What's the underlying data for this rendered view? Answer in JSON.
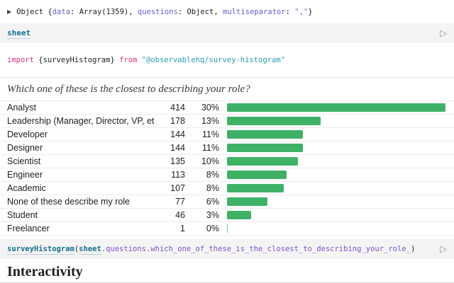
{
  "inspector": {
    "toggle": "▶",
    "object_prefix": "Object {",
    "entries": [
      {
        "key": "data",
        "sep": ": ",
        "value": "Array(1359)",
        "kind": "plain"
      },
      {
        "key": "questions",
        "sep": ": ",
        "value": "Object",
        "kind": "plain"
      },
      {
        "key": "multiseparator",
        "sep": ": ",
        "value": "\",\"",
        "kind": "string"
      }
    ],
    "delimiter": ", ",
    "object_suffix": "}"
  },
  "sheet_cell": {
    "label": "sheet"
  },
  "import_cell": {
    "kw_import": "import",
    "binding": "{surveyHistogram}",
    "kw_from": "from",
    "module_string": "\"@observablehq/survey-histogram\""
  },
  "chart_data": {
    "type": "bar",
    "orientation": "horizontal",
    "title": "Which one of these is the closest to describing your role?",
    "categories": [
      "Analyst",
      "Leadership (Manager, Director, VP, etc)",
      "Developer",
      "Designer",
      "Scientist",
      "Engineer",
      "Academic",
      "None of these describe my role",
      "Student",
      "Freelancer"
    ],
    "counts": [
      414,
      178,
      144,
      144,
      135,
      113,
      107,
      77,
      46,
      1
    ],
    "percent_labels": [
      "30%",
      "13%",
      "11%",
      "11%",
      "10%",
      "8%",
      "8%",
      "6%",
      "3%",
      "0%"
    ],
    "max_count": 414,
    "bar_color": "#3eb167",
    "zero_bar_color": "#8fbfae",
    "legend": false,
    "grid": false
  },
  "result_cell": {
    "fn": "surveyHistogram",
    "paren_open": "(",
    "ref": "sheet",
    "chain": ".questions.which_one_of_these_is_the_closest_to_describing_your_role_",
    "paren_close": ")"
  },
  "icons": {
    "play": "▷"
  },
  "footer_heading": "Interactivity"
}
